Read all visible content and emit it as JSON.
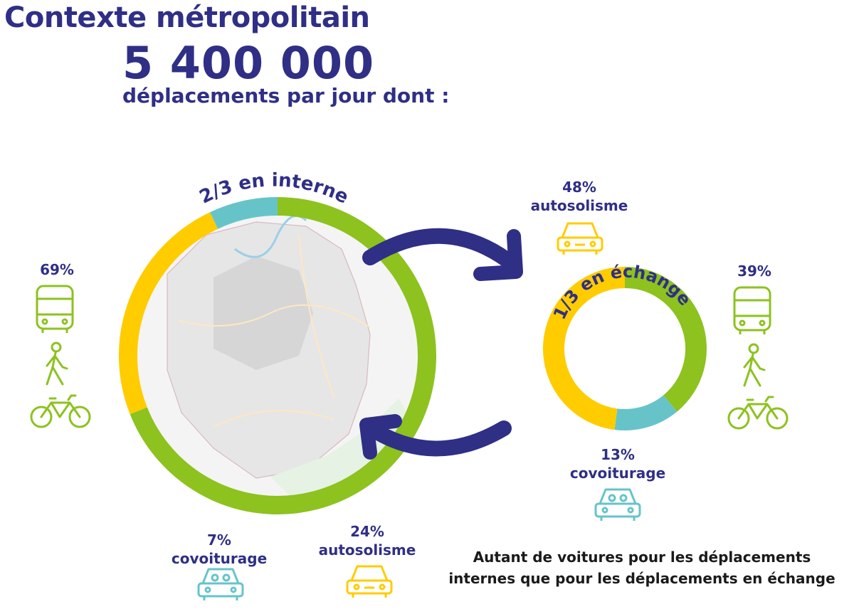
{
  "header": {
    "title": "Contexte métropolitain",
    "total": "5 400 000",
    "subtitle": "déplacements par jour dont :"
  },
  "colors": {
    "navy": "#2f2f86",
    "green": "#8dc21f",
    "yellow": "#ffcc00",
    "teal": "#66c4c9",
    "map": "#f0f0f0"
  },
  "icons": [
    "bus-icon",
    "pedestrian-icon",
    "bicycle-icon",
    "car-icon",
    "carpool-icon",
    "arrow-icon"
  ],
  "note": {
    "line1": "Autant de voitures pour les déplacements",
    "line2": "internes que pour les déplacements en échange"
  },
  "chart_data": [
    {
      "type": "pie",
      "variant": "donut",
      "title": "2/3 en interne",
      "slices": [
        {
          "label": "69%",
          "value": 69,
          "color": "#8dc21f"
        },
        {
          "label": "autosolisme",
          "value_label": "24%",
          "value": 24,
          "color": "#ffcc00"
        },
        {
          "label": "covoiturage",
          "value_label": "7%",
          "value": 7,
          "color": "#66c4c9"
        }
      ]
    },
    {
      "type": "pie",
      "variant": "donut",
      "title": "1/3 en échange",
      "slices": [
        {
          "label": "39%",
          "value": 39,
          "color": "#8dc21f"
        },
        {
          "label": "covoiturage",
          "value_label": "13%",
          "value": 13,
          "color": "#66c4c9"
        },
        {
          "label": "autosolisme",
          "value_label": "48%",
          "value": 48,
          "color": "#ffcc00"
        }
      ]
    }
  ]
}
